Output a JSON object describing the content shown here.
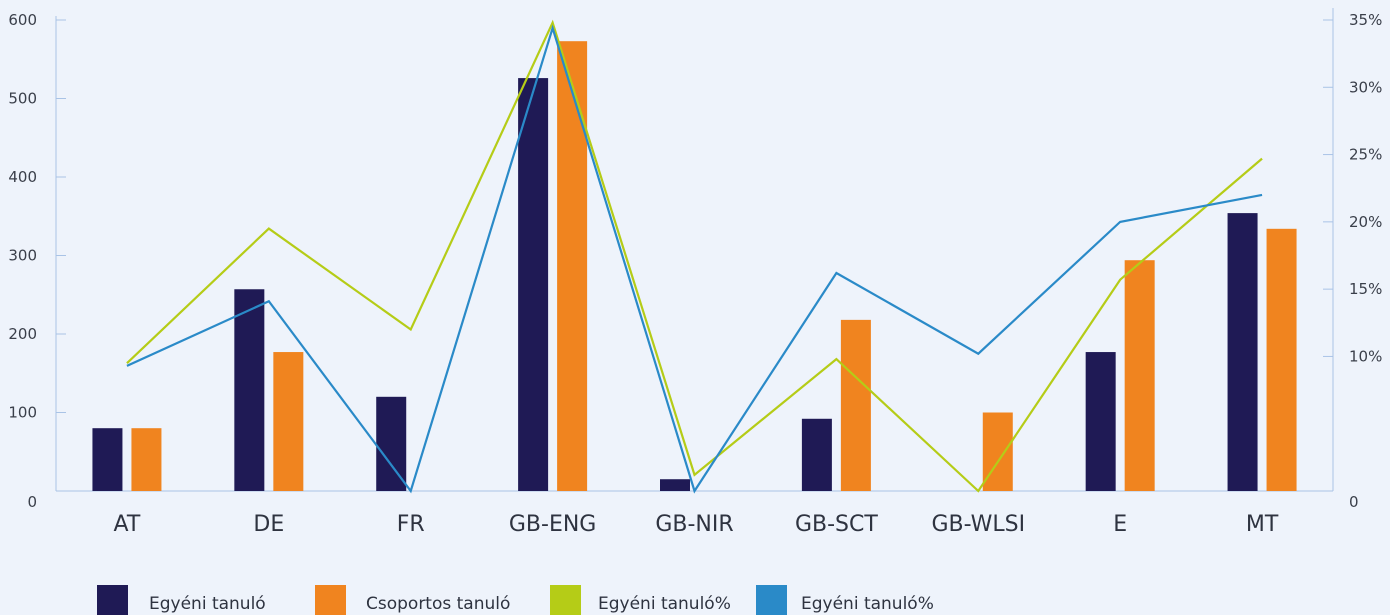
{
  "chart_data": {
    "type": "bar",
    "categories": [
      "AT",
      "DE",
      "FR",
      "GB-ENG",
      "GB-NIR",
      "GB-SCT",
      "GB-WLSI",
      "E",
      "MT"
    ],
    "y_left": {
      "ylim": [
        0,
        600
      ],
      "ticks": [
        "0",
        "100",
        "200",
        "300",
        "400",
        "500",
        "600"
      ]
    },
    "y_right": {
      "ylim": [
        0,
        35
      ],
      "ticks": [
        "0",
        "10%",
        "15%",
        "20%",
        "25%",
        "30%",
        "35%"
      ]
    },
    "bar_series": [
      {
        "name": "Egyéni tanuló",
        "color": "#1f1a55",
        "values": [
          80,
          257,
          120,
          526,
          15,
          92,
          0,
          177,
          354
        ]
      },
      {
        "name": "Csoportos tanuló",
        "color": "#f0841f",
        "values": [
          80,
          177,
          0,
          573,
          0,
          218,
          100,
          294,
          334
        ]
      }
    ],
    "line_series": [
      {
        "name": "Egyéni tanuló%",
        "color": "#b5cc17",
        "values": [
          9.5,
          19.5,
          12.0,
          34.8,
          1.2,
          9.8,
          0,
          15.7,
          24.7
        ]
      },
      {
        "name": "Egyéni tanuló%",
        "color": "#2a8ac8",
        "values": [
          9.3,
          14.1,
          0,
          34.4,
          0,
          16.2,
          10.2,
          20.0,
          22.0
        ]
      }
    ],
    "grid": false,
    "legend_position": "bottom-left"
  }
}
